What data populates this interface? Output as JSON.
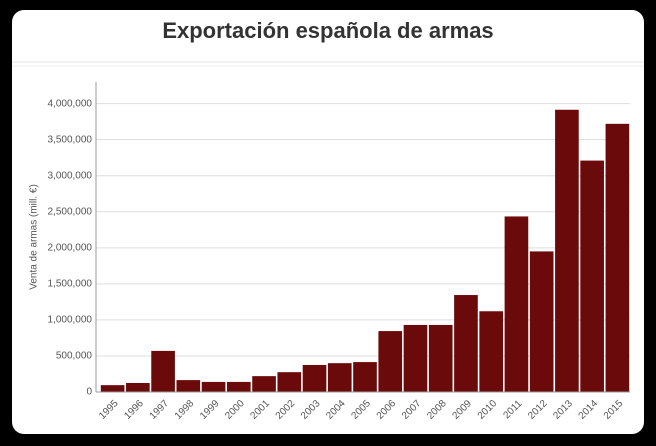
{
  "chart_data": {
    "type": "bar",
    "title": "Exportación española de armas",
    "y_label": "Venta de armas (mill. €)",
    "categories": [
      "1995",
      "1996",
      "1997",
      "1998",
      "1999",
      "2000",
      "2001",
      "2002",
      "2003",
      "2004",
      "2005",
      "2006",
      "2007",
      "2008",
      "2009",
      "2010",
      "2011",
      "2012",
      "2013",
      "2014",
      "2015"
    ],
    "values": [
      95000,
      125000,
      570000,
      165000,
      140000,
      140000,
      220000,
      275000,
      375000,
      400000,
      415000,
      845000,
      930000,
      930000,
      1345000,
      1120000,
      2435000,
      1950000,
      3915000,
      3210000,
      3720000
    ],
    "color": "#6b0a0a",
    "ylim": [
      0,
      4300000
    ],
    "yticks": [
      0,
      {
        "value": 500000,
        "label": "500,000"
      },
      {
        "value": 1000000,
        "label": "1,000,000"
      },
      {
        "value": 1500000,
        "label": "1,500,000"
      },
      {
        "value": 2000000,
        "label": "2,000,000"
      },
      {
        "value": 2500000,
        "label": "2,500,000"
      },
      {
        "value": 3000000,
        "label": "3,000,000"
      },
      {
        "value": 3500000,
        "label": "3,500,000"
      },
      {
        "value": 4000000,
        "label": "4,000,000"
      }
    ],
    "grid": true
  }
}
